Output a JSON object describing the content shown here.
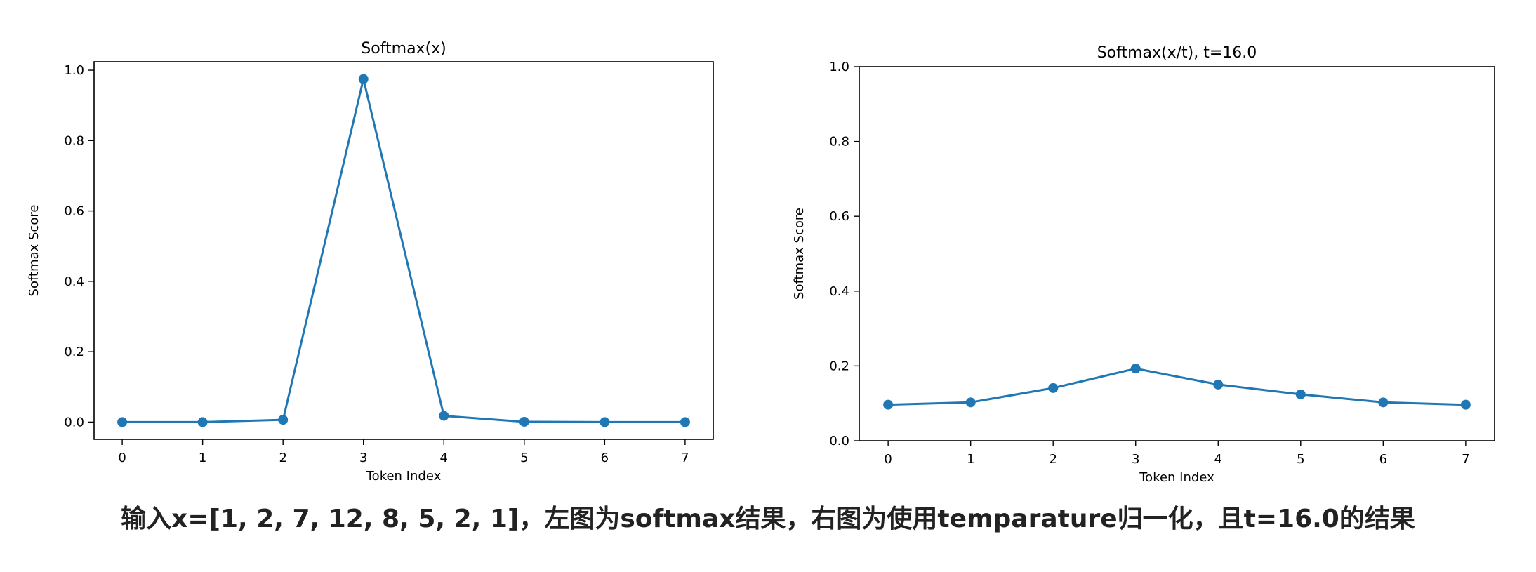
{
  "caption": "输入x=[1, 2, 7, 12, 8, 5, 2, 1]，左图为softmax结果，右图为使用temparature归一化，且t=16.0的结果",
  "chart_data": [
    {
      "type": "line",
      "title": "Softmax(x)",
      "xlabel": "Token Index",
      "ylabel": "Softmax Score",
      "x": [
        0,
        1,
        2,
        3,
        4,
        5,
        6,
        7
      ],
      "xticks": [
        "0",
        "1",
        "2",
        "3",
        "4",
        "5",
        "6",
        "7"
      ],
      "xlim": [
        -0.35,
        7.35
      ],
      "yticks": [
        0.0,
        0.2,
        0.4,
        0.6,
        0.8,
        1.0
      ],
      "yticklabels": [
        "0.0",
        "0.2",
        "0.4",
        "0.6",
        "0.8",
        "1.0"
      ],
      "ylim": [
        -0.049,
        1.024
      ],
      "series": [
        {
          "values": [
            0.0,
            0.0,
            0.0066,
            0.9749,
            0.0179,
            0.0009,
            0.0,
            0.0
          ],
          "color": "#1f77b4",
          "marker": "circle"
        }
      ],
      "grid": false
    },
    {
      "type": "line",
      "title": "Softmax(x/t), t=16.0",
      "xlabel": "Token Index",
      "ylabel": "Softmax Score",
      "x": [
        0,
        1,
        2,
        3,
        4,
        5,
        6,
        7
      ],
      "xticks": [
        "0",
        "1",
        "2",
        "3",
        "4",
        "5",
        "6",
        "7"
      ],
      "xlim": [
        -0.35,
        7.35
      ],
      "yticks": [
        0.0,
        0.2,
        0.4,
        0.6,
        0.8,
        1.0
      ],
      "yticklabels": [
        "0.0",
        "0.2",
        "0.4",
        "0.6",
        "0.8",
        "1.0"
      ],
      "ylim": [
        0.0,
        1.0
      ],
      "series": [
        {
          "values": [
            0.0963,
            0.1026,
            0.1409,
            0.1929,
            0.1503,
            0.1241,
            0.1026,
            0.0963
          ],
          "color": "#1f77b4",
          "marker": "circle"
        }
      ],
      "grid": false
    }
  ]
}
